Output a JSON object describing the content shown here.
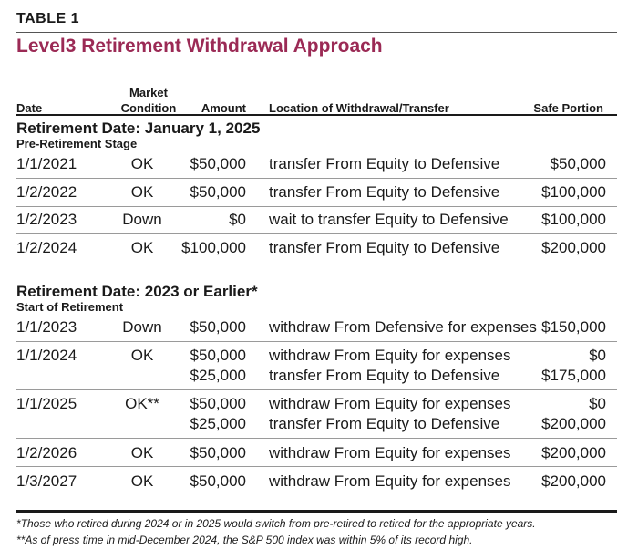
{
  "table_label": "TABLE 1",
  "title": "Level3 Retirement Withdrawal Approach",
  "headers": {
    "date": "Date",
    "market_condition_line1": "Market",
    "market_condition_line2": "Condition",
    "amount": "Amount",
    "location": "Location of Withdrawal/Transfer",
    "safe_portion": "Safe Portion"
  },
  "sections": [
    {
      "title": "Retirement Date: January 1, 2025",
      "subtitle": "Pre-Retirement Stage",
      "rows": [
        {
          "date": "1/1/2021",
          "condition": "OK",
          "lines": [
            {
              "amount": "$50,000",
              "location": "transfer From Equity to Defensive",
              "safe": "$50,000"
            }
          ]
        },
        {
          "date": "1/2/2022",
          "condition": "OK",
          "lines": [
            {
              "amount": "$50,000",
              "location": "transfer From Equity to Defensive",
              "safe": "$100,000"
            }
          ]
        },
        {
          "date": "1/2/2023",
          "condition": "Down",
          "lines": [
            {
              "amount": "$0",
              "location": "wait to transfer Equity to Defensive",
              "safe": "$100,000"
            }
          ]
        },
        {
          "date": "1/2/2024",
          "condition": "OK",
          "lines": [
            {
              "amount": "$100,000",
              "location": "transfer From Equity to Defensive",
              "safe": "$200,000"
            }
          ]
        }
      ]
    },
    {
      "title": "Retirement Date: 2023 or Earlier*",
      "subtitle": "Start of Retirement",
      "rows": [
        {
          "date": "1/1/2023",
          "condition": "Down",
          "lines": [
            {
              "amount": "$50,000",
              "location": "withdraw From Defensive for expenses",
              "safe": "$150,000"
            }
          ]
        },
        {
          "date": "1/1/2024",
          "condition": "OK",
          "lines": [
            {
              "amount": "$50,000",
              "location": "withdraw From Equity for expenses",
              "safe": "$0"
            },
            {
              "amount": "$25,000",
              "location": "transfer From Equity to Defensive",
              "safe": "$175,000"
            }
          ]
        },
        {
          "date": "1/1/2025",
          "condition": "OK**",
          "lines": [
            {
              "amount": "$50,000",
              "location": "withdraw From Equity for expenses",
              "safe": "$0"
            },
            {
              "amount": "$25,000",
              "location": "transfer From Equity to Defensive",
              "safe": "$200,000"
            }
          ]
        },
        {
          "date": "1/2/2026",
          "condition": "OK",
          "lines": [
            {
              "amount": "$50,000",
              "location": "withdraw From Equity for expenses",
              "safe": "$200,000"
            }
          ]
        },
        {
          "date": "1/3/2027",
          "condition": "OK",
          "lines": [
            {
              "amount": "$50,000",
              "location": "withdraw From Equity for expenses",
              "safe": "$200,000"
            }
          ]
        }
      ]
    }
  ],
  "footnotes": [
    "*Those who retired during 2024 or in 2025 would switch from pre-retired to retired for the appropriate years.",
    "**As of press time in mid-December 2024, the S&P 500 index was within 5% of its record high."
  ]
}
